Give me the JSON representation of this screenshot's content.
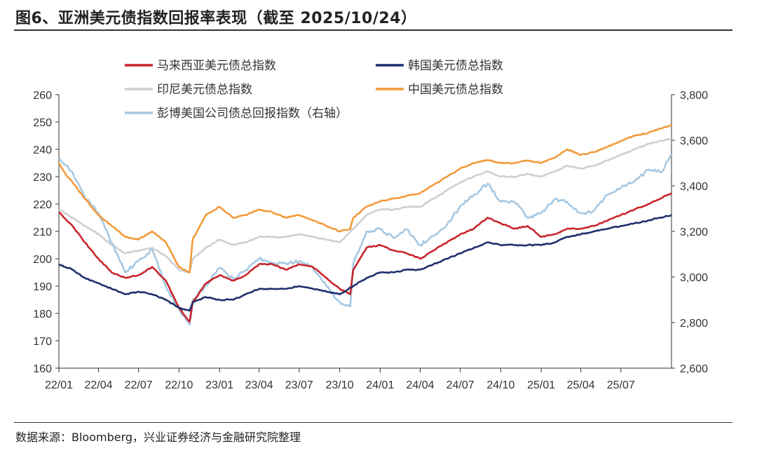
{
  "header": {
    "title": "图6、亚洲美元债指数回报率表现（截至 2025/10/24）"
  },
  "footer": {
    "source": "数据来源：Bloomberg，兴业证券经济与金融研究院整理"
  },
  "colors": {
    "malaysia": "#c8262c",
    "korea": "#1f2f6e",
    "indonesia": "#cfcfcf",
    "china": "#f39a3b",
    "bloomberg": "#a6c8e2"
  },
  "chart_data": {
    "type": "line",
    "title": "",
    "xlabel": "",
    "ylabel": "",
    "x_ticks": [
      "22/01",
      "22/04",
      "22/07",
      "22/10",
      "23/01",
      "23/04",
      "23/07",
      "23/10",
      "24/01",
      "24/04",
      "24/07",
      "24/10",
      "25/01",
      "25/04",
      "25/07"
    ],
    "x_range": [
      "2022-01",
      "2025-10-24"
    ],
    "y_left": {
      "min": 160,
      "max": 260,
      "ticks": [
        160,
        170,
        180,
        190,
        200,
        210,
        220,
        230,
        240,
        250,
        260
      ]
    },
    "y_right": {
      "min": 2600,
      "max": 3800,
      "ticks": [
        "2,600",
        "2,800",
        "3,000",
        "3,200",
        "3,400",
        "3,600",
        "3,800"
      ]
    },
    "legend_position": "top",
    "grid": false,
    "series": [
      {
        "name": "马来西亚美元债总指数",
        "axis": "left",
        "color_key": "malaysia",
        "points": [
          [
            "2022-01",
            217
          ],
          [
            "2022-02",
            212
          ],
          [
            "2022-03",
            206
          ],
          [
            "2022-04",
            200
          ],
          [
            "2022-05",
            195
          ],
          [
            "2022-06",
            193
          ],
          [
            "2022-07",
            194
          ],
          [
            "2022-08",
            197
          ],
          [
            "2022-09",
            192
          ],
          [
            "2022-10",
            182
          ],
          [
            "2022-10-25",
            177
          ],
          [
            "2022-11",
            184
          ],
          [
            "2022-12",
            191
          ],
          [
            "2023-01",
            194
          ],
          [
            "2023-02",
            192
          ],
          [
            "2023-03",
            194
          ],
          [
            "2023-04",
            198
          ],
          [
            "2023-05",
            198
          ],
          [
            "2023-06",
            196
          ],
          [
            "2023-07",
            198
          ],
          [
            "2023-08",
            197
          ],
          [
            "2023-09",
            193
          ],
          [
            "2023-10",
            189
          ],
          [
            "2023-10-25",
            187
          ],
          [
            "2023-11",
            196
          ],
          [
            "2023-12",
            204
          ],
          [
            "2024-01",
            205
          ],
          [
            "2024-02",
            203
          ],
          [
            "2024-03",
            202
          ],
          [
            "2024-04",
            200
          ],
          [
            "2024-05",
            203
          ],
          [
            "2024-06",
            206
          ],
          [
            "2024-07",
            209
          ],
          [
            "2024-08",
            211
          ],
          [
            "2024-09",
            215
          ],
          [
            "2024-10",
            213
          ],
          [
            "2024-11",
            211
          ],
          [
            "2024-12",
            212
          ],
          [
            "2025-01",
            208
          ],
          [
            "2025-02",
            209
          ],
          [
            "2025-03",
            211
          ],
          [
            "2025-04",
            211
          ],
          [
            "2025-05",
            212
          ],
          [
            "2025-06",
            214
          ],
          [
            "2025-07",
            216
          ],
          [
            "2025-08",
            218
          ],
          [
            "2025-09",
            220
          ],
          [
            "2025-10-24",
            224
          ]
        ]
      },
      {
        "name": "韩国美元债总指数",
        "axis": "left",
        "color_key": "korea",
        "points": [
          [
            "2022-01",
            198
          ],
          [
            "2022-02",
            196
          ],
          [
            "2022-03",
            193
          ],
          [
            "2022-04",
            191
          ],
          [
            "2022-05",
            189
          ],
          [
            "2022-06",
            187
          ],
          [
            "2022-07",
            188
          ],
          [
            "2022-08",
            187
          ],
          [
            "2022-09",
            185
          ],
          [
            "2022-10",
            182
          ],
          [
            "2022-10-25",
            181
          ],
          [
            "2022-11",
            184
          ],
          [
            "2022-12",
            186
          ],
          [
            "2023-01",
            185
          ],
          [
            "2023-02",
            185
          ],
          [
            "2023-03",
            187
          ],
          [
            "2023-04",
            189
          ],
          [
            "2023-05",
            189
          ],
          [
            "2023-06",
            189
          ],
          [
            "2023-07",
            190
          ],
          [
            "2023-08",
            189
          ],
          [
            "2023-09",
            188
          ],
          [
            "2023-10",
            187
          ],
          [
            "2023-11",
            190
          ],
          [
            "2023-12",
            193
          ],
          [
            "2024-01",
            195
          ],
          [
            "2024-02",
            195
          ],
          [
            "2024-03",
            196
          ],
          [
            "2024-04",
            196
          ],
          [
            "2024-05",
            198
          ],
          [
            "2024-06",
            200
          ],
          [
            "2024-07",
            202
          ],
          [
            "2024-08",
            204
          ],
          [
            "2024-09",
            206
          ],
          [
            "2024-10",
            205
          ],
          [
            "2024-11",
            205
          ],
          [
            "2024-12",
            205
          ],
          [
            "2025-01",
            205
          ],
          [
            "2025-02",
            206
          ],
          [
            "2025-03",
            208
          ],
          [
            "2025-04",
            209
          ],
          [
            "2025-05",
            210
          ],
          [
            "2025-06",
            211
          ],
          [
            "2025-07",
            212
          ],
          [
            "2025-08",
            213
          ],
          [
            "2025-09",
            214
          ],
          [
            "2025-10-24",
            216
          ]
        ]
      },
      {
        "name": "印尼美元债总指数",
        "axis": "left",
        "color_key": "indonesia",
        "points": [
          [
            "2022-01",
            218
          ],
          [
            "2022-02",
            215
          ],
          [
            "2022-03",
            212
          ],
          [
            "2022-04",
            209
          ],
          [
            "2022-05",
            205
          ],
          [
            "2022-06",
            202
          ],
          [
            "2022-07",
            203
          ],
          [
            "2022-08",
            204
          ],
          [
            "2022-09",
            201
          ],
          [
            "2022-10",
            196
          ],
          [
            "2022-10-25",
            195
          ],
          [
            "2022-11",
            200
          ],
          [
            "2022-12",
            204
          ],
          [
            "2023-01",
            207
          ],
          [
            "2023-02",
            205
          ],
          [
            "2023-03",
            206
          ],
          [
            "2023-04",
            208
          ],
          [
            "2023-05",
            208
          ],
          [
            "2023-06",
            208
          ],
          [
            "2023-07",
            209
          ],
          [
            "2023-08",
            208
          ],
          [
            "2023-09",
            207
          ],
          [
            "2023-10",
            206
          ],
          [
            "2023-11",
            211
          ],
          [
            "2023-12",
            216
          ],
          [
            "2024-01",
            218
          ],
          [
            "2024-02",
            218
          ],
          [
            "2024-03",
            219
          ],
          [
            "2024-04",
            219
          ],
          [
            "2024-05",
            222
          ],
          [
            "2024-06",
            225
          ],
          [
            "2024-07",
            228
          ],
          [
            "2024-08",
            230
          ],
          [
            "2024-09",
            232
          ],
          [
            "2024-10",
            230
          ],
          [
            "2024-11",
            230
          ],
          [
            "2024-12",
            231
          ],
          [
            "2025-01",
            230
          ],
          [
            "2025-02",
            232
          ],
          [
            "2025-03",
            234
          ],
          [
            "2025-04",
            233
          ],
          [
            "2025-05",
            234
          ],
          [
            "2025-06",
            236
          ],
          [
            "2025-07",
            238
          ],
          [
            "2025-08",
            240
          ],
          [
            "2025-09",
            242
          ],
          [
            "2025-10-24",
            244
          ]
        ]
      },
      {
        "name": "中国美元债总指数",
        "axis": "left",
        "color_key": "china",
        "points": [
          [
            "2022-01",
            235
          ],
          [
            "2022-01-20",
            230
          ],
          [
            "2022-02",
            228
          ],
          [
            "2022-03",
            222
          ],
          [
            "2022-04",
            216
          ],
          [
            "2022-05",
            212
          ],
          [
            "2022-06",
            208
          ],
          [
            "2022-07",
            207
          ],
          [
            "2022-08",
            210
          ],
          [
            "2022-09",
            206
          ],
          [
            "2022-10",
            197
          ],
          [
            "2022-10-25",
            195
          ],
          [
            "2022-11",
            207
          ],
          [
            "2022-12",
            216
          ],
          [
            "2023-01",
            219
          ],
          [
            "2023-02",
            215
          ],
          [
            "2023-03",
            216
          ],
          [
            "2023-04",
            218
          ],
          [
            "2023-05",
            217
          ],
          [
            "2023-06",
            215
          ],
          [
            "2023-07",
            216
          ],
          [
            "2023-08",
            214
          ],
          [
            "2023-09",
            212
          ],
          [
            "2023-10",
            210
          ],
          [
            "2023-10-25",
            211
          ],
          [
            "2023-11",
            215
          ],
          [
            "2023-12",
            219
          ],
          [
            "2024-01",
            221
          ],
          [
            "2024-02",
            222
          ],
          [
            "2024-03",
            223
          ],
          [
            "2024-04",
            224
          ],
          [
            "2024-05",
            227
          ],
          [
            "2024-06",
            230
          ],
          [
            "2024-07",
            233
          ],
          [
            "2024-08",
            235
          ],
          [
            "2024-09",
            236
          ],
          [
            "2024-10",
            235
          ],
          [
            "2024-11",
            235
          ],
          [
            "2024-12",
            236
          ],
          [
            "2025-01",
            235
          ],
          [
            "2025-02",
            237
          ],
          [
            "2025-03",
            240
          ],
          [
            "2025-04",
            238
          ],
          [
            "2025-05",
            239
          ],
          [
            "2025-06",
            241
          ],
          [
            "2025-07",
            243
          ],
          [
            "2025-08",
            245
          ],
          [
            "2025-09",
            246
          ],
          [
            "2025-10-24",
            249
          ]
        ]
      },
      {
        "name": "彭博美国公司债总回报指数（右轴）",
        "axis": "right",
        "color_key": "bloomberg",
        "points": [
          [
            "2022-01",
            3520
          ],
          [
            "2022-02",
            3460
          ],
          [
            "2022-03",
            3350
          ],
          [
            "2022-04",
            3280
          ],
          [
            "2022-05",
            3150
          ],
          [
            "2022-06",
            3020
          ],
          [
            "2022-07",
            3070
          ],
          [
            "2022-08",
            3120
          ],
          [
            "2022-09",
            2960
          ],
          [
            "2022-10",
            2860
          ],
          [
            "2022-10-25",
            2790
          ],
          [
            "2022-11",
            2900
          ],
          [
            "2022-12",
            2960
          ],
          [
            "2023-01",
            3040
          ],
          [
            "2023-02",
            2990
          ],
          [
            "2023-03",
            3030
          ],
          [
            "2023-04",
            3080
          ],
          [
            "2023-05",
            3060
          ],
          [
            "2023-06",
            3060
          ],
          [
            "2023-07",
            3070
          ],
          [
            "2023-08",
            3040
          ],
          [
            "2023-09",
            2960
          ],
          [
            "2023-10",
            2890
          ],
          [
            "2023-10-25",
            2870
          ],
          [
            "2023-11",
            3060
          ],
          [
            "2023-12",
            3200
          ],
          [
            "2024-01",
            3210
          ],
          [
            "2024-02",
            3170
          ],
          [
            "2024-03",
            3210
          ],
          [
            "2024-04",
            3140
          ],
          [
            "2024-05",
            3180
          ],
          [
            "2024-06",
            3230
          ],
          [
            "2024-07",
            3310
          ],
          [
            "2024-08",
            3360
          ],
          [
            "2024-09",
            3410
          ],
          [
            "2024-10",
            3330
          ],
          [
            "2024-11",
            3330
          ],
          [
            "2024-12",
            3260
          ],
          [
            "2025-01",
            3280
          ],
          [
            "2025-02",
            3340
          ],
          [
            "2025-03",
            3330
          ],
          [
            "2025-04",
            3280
          ],
          [
            "2025-05",
            3290
          ],
          [
            "2025-06",
            3360
          ],
          [
            "2025-07",
            3390
          ],
          [
            "2025-08",
            3420
          ],
          [
            "2025-09",
            3470
          ],
          [
            "2025-10",
            3460
          ],
          [
            "2025-10-24",
            3540
          ]
        ]
      }
    ]
  }
}
